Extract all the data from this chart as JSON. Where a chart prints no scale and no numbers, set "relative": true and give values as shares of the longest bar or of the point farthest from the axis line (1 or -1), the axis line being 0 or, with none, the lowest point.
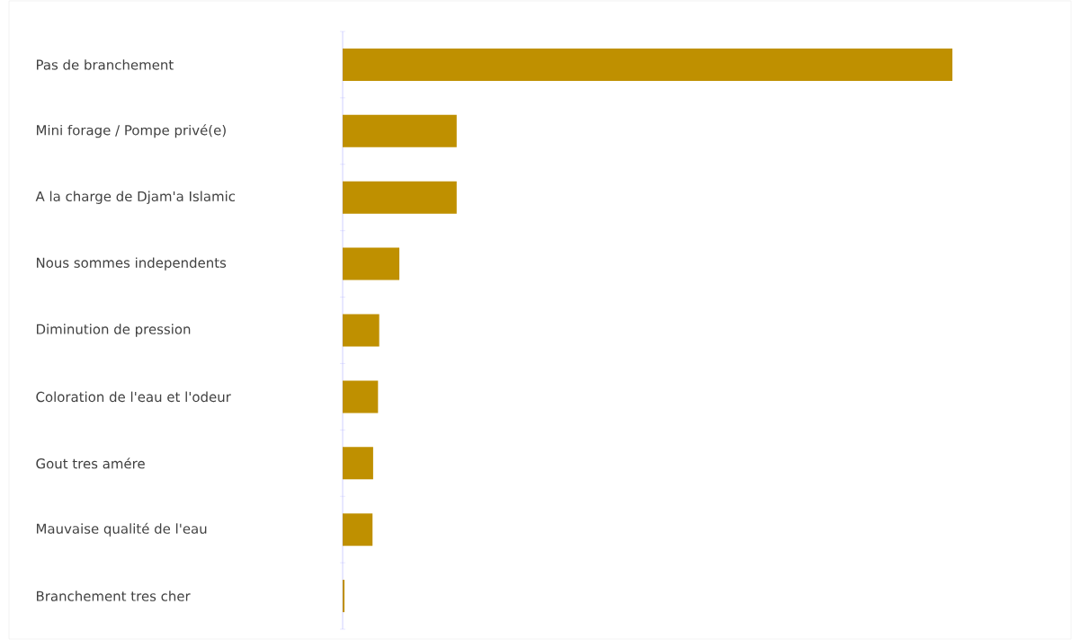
{
  "chart_data": {
    "type": "bar",
    "orientation": "horizontal",
    "relative": true,
    "color": "#bf9000",
    "categories": [
      "Pas de branchement",
      "Mini forage / Pompe privé(e)",
      "A la charge de Djam'a Islamic",
      "Nous sommes independents",
      "Diminution de pression",
      "Coloration de l'eau et l'odeur",
      "Gout tres amére",
      "Mauvaise qualité de l'eau",
      "Branchement tres cher"
    ],
    "values": [
      1,
      0.187,
      0.187,
      0.093,
      0.06,
      0.058,
      0.05,
      0.049,
      0.003
    ]
  }
}
